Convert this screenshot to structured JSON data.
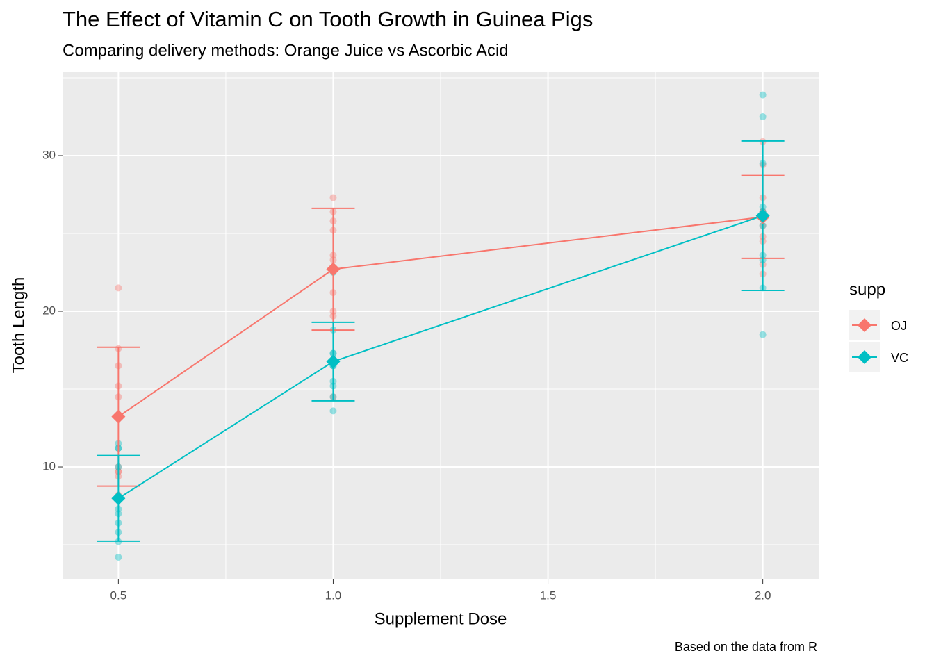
{
  "chart_data": {
    "type": "line",
    "title": "The Effect of Vitamin C on Tooth Growth in Guinea Pigs",
    "subtitle": "Comparing delivery methods: Orange Juice vs Ascorbic Acid",
    "x_label": "Supplement Dose",
    "y_label": "Tooth Length",
    "caption": "Based on the data from R",
    "legend_title": "supp",
    "legend_position": "right",
    "grid": true,
    "xlim": [
      0.37,
      2.13
    ],
    "xticks": [
      {
        "value": 0.5,
        "label": "0.5"
      },
      {
        "value": 1.0,
        "label": "1.0"
      },
      {
        "value": 1.5,
        "label": "1.5"
      },
      {
        "value": 2.0,
        "label": "2.0"
      }
    ],
    "ylim": [
      2.77,
      35.4
    ],
    "yticks": [
      10,
      20,
      30
    ],
    "series": [
      {
        "name": "OJ",
        "color": "#F8766D",
        "x": [
          0.5,
          1.0,
          2.0
        ],
        "values": [
          13.23,
          22.7,
          26.06
        ],
        "sd": [
          4.46,
          3.91,
          2.66
        ],
        "points": [
          [
            15.2,
            21.5,
            17.6,
            9.7,
            14.5,
            10,
            8.2,
            9.4,
            16.5,
            9.7
          ],
          [
            19.7,
            23.3,
            23.6,
            26.4,
            20,
            25.2,
            25.8,
            21.2,
            14.5,
            27.3
          ],
          [
            25.5,
            26.4,
            22.4,
            24.5,
            24.8,
            30.9,
            26.4,
            27.3,
            29.4,
            23
          ]
        ]
      },
      {
        "name": "VC",
        "color": "#00BFC4",
        "x": [
          0.5,
          1.0,
          2.0
        ],
        "values": [
          7.98,
          16.77,
          26.14
        ],
        "sd": [
          2.75,
          2.52,
          4.8
        ],
        "points": [
          [
            4.2,
            11.5,
            7.3,
            5.8,
            6.4,
            10,
            11.2,
            11.2,
            5.2,
            7
          ],
          [
            16.5,
            16.5,
            15.2,
            17.3,
            22.5,
            17.3,
            13.6,
            14.5,
            18.8,
            15.5
          ],
          [
            23.6,
            18.5,
            33.9,
            25.5,
            26.4,
            32.5,
            26.7,
            21.5,
            23.3,
            29.5
          ]
        ]
      }
    ]
  }
}
